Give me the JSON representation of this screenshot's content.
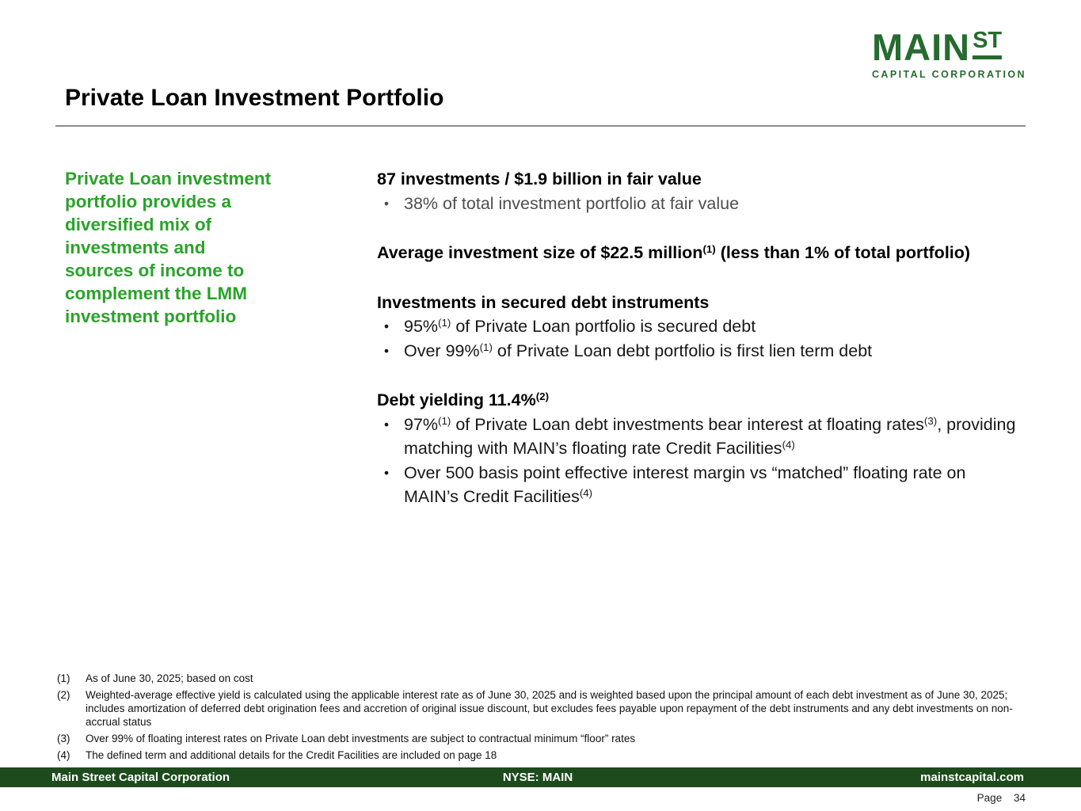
{
  "slide": {
    "logo": {
      "main": "MAIN",
      "st": "ST",
      "subtitle": "CAPITAL CORPORATION"
    },
    "title": "Private Loan Investment Portfolio",
    "side_note": {
      "lines": [
        "Private Loan investment",
        "portfolio provides a",
        "diversified mix of",
        "investments and",
        "sources of income to",
        "complement the LMM",
        "investment portfolio"
      ]
    },
    "content": {
      "bullet_char": "•",
      "sections": [
        {
          "heading_parts": [
            {
              "t": "87 investments / $1.9 billion in fair value"
            }
          ],
          "bullets": [
            {
              "muted": true,
              "parts": [
                {
                  "t": "38% of total investment portfolio at fair value"
                }
              ]
            }
          ]
        },
        {
          "heading_parts": [
            {
              "t": "Average investment size of $22.5 million"
            },
            {
              "sup": "(1)"
            },
            {
              "t": " (less than 1% of total portfolio)"
            }
          ],
          "bullets": []
        },
        {
          "heading_parts": [
            {
              "t": "Investments in secured debt instruments"
            }
          ],
          "bullets": [
            {
              "parts": [
                {
                  "t": "95%"
                },
                {
                  "sup": "(1)"
                },
                {
                  "t": " of Private Loan portfolio is secured debt"
                }
              ]
            },
            {
              "parts": [
                {
                  "t": "Over 99%"
                },
                {
                  "sup": "(1)"
                },
                {
                  "t": " of Private Loan debt portfolio is first lien term debt"
                }
              ]
            }
          ]
        },
        {
          "heading_parts": [
            {
              "t": "Debt yielding 11.4%"
            },
            {
              "sup": "(2)"
            }
          ],
          "bullets": [
            {
              "parts": [
                {
                  "t": "97%"
                },
                {
                  "sup": "(1)"
                },
                {
                  "t": " of Private Loan debt investments bear interest at floating rates"
                },
                {
                  "sup": "(3)"
                },
                {
                  "t": ", providing matching with MAIN’s floating rate Credit Facilities"
                },
                {
                  "sup": "(4)"
                }
              ]
            },
            {
              "parts": [
                {
                  "t": "Over 500 basis point effective interest margin vs “matched” floating rate on MAIN’s Credit Facilities"
                },
                {
                  "sup": "(4)"
                }
              ]
            }
          ]
        }
      ]
    },
    "footnotes": [
      {
        "num": "(1)",
        "text": "As of June 30, 2025; based on cost"
      },
      {
        "num": "(2)",
        "text": "Weighted-average effective yield is calculated using the applicable interest rate as of June 30, 2025 and is weighted based upon the principal amount of each debt investment as of June 30, 2025; includes amortization of deferred debt origination fees and accretion of original issue discount, but excludes fees payable upon repayment of the debt instruments and any debt investments on non-accrual status"
      },
      {
        "num": "(3)",
        "text": "Over 99% of floating interest rates on Private Loan debt investments are subject to contractual minimum “floor” rates"
      },
      {
        "num": "(4)",
        "text": "The defined term and additional details for the Credit Facilities are included on page 18"
      }
    ],
    "footer": {
      "left": "Main Street Capital Corporation",
      "center": "NYSE: MAIN",
      "right": "mainstcapital.com",
      "page_label": "Page",
      "page_number": "34"
    },
    "colors": {
      "logo_green": "#266b2f",
      "accent_green": "#2aa32a",
      "footer_bar_green": "#1d4b1d",
      "rule_gray": "#8c8c8c"
    }
  }
}
